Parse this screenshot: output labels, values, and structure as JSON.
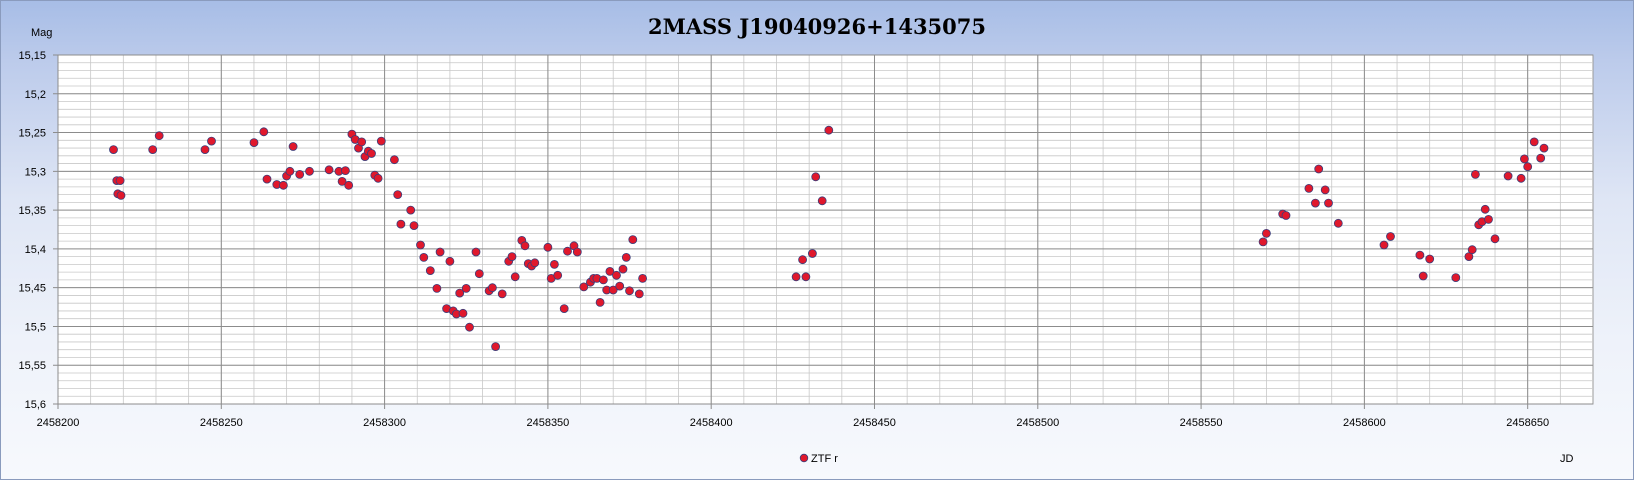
{
  "chart_data": {
    "type": "scatter",
    "title": "2MASS J19040926+1435075",
    "xlabel": "JD",
    "ylabel": "Mag",
    "xlim": [
      2458200,
      2458670
    ],
    "ylim": [
      15.15,
      15.6
    ],
    "y_inverted": true,
    "x_ticks": [
      "2458200",
      "2458250",
      "2458300",
      "2458350",
      "2458400",
      "2458450",
      "2458500",
      "2458550",
      "2458600",
      "2458650"
    ],
    "y_ticks": [
      "15,15",
      "15,2",
      "15,25",
      "15,3",
      "15,35",
      "15,4",
      "15,45",
      "15,5",
      "15,55",
      "15,6"
    ],
    "grid": true,
    "legend_position": "bottom-center",
    "colors": {
      "marker_fill": "#e0182c",
      "marker_edge": "#3a3d7a"
    },
    "series": [
      {
        "name": "ZTF r",
        "points": [
          [
            2458217,
            15.272
          ],
          [
            2458218,
            15.312
          ],
          [
            2458218.3,
            15.329
          ],
          [
            2458219,
            15.312
          ],
          [
            2458219.3,
            15.331
          ],
          [
            2458229,
            15.272
          ],
          [
            2458231,
            15.254
          ],
          [
            2458245,
            15.272
          ],
          [
            2458247,
            15.261
          ],
          [
            2458260,
            15.263
          ],
          [
            2458263,
            15.249
          ],
          [
            2458264,
            15.31
          ],
          [
            2458267,
            15.317
          ],
          [
            2458269,
            15.318
          ],
          [
            2458270,
            15.306
          ],
          [
            2458271,
            15.3
          ],
          [
            2458272,
            15.268
          ],
          [
            2458274,
            15.304
          ],
          [
            2458277,
            15.3
          ],
          [
            2458283,
            15.298
          ],
          [
            2458286,
            15.3
          ],
          [
            2458287,
            15.313
          ],
          [
            2458288,
            15.299
          ],
          [
            2458289,
            15.318
          ],
          [
            2458290,
            15.252
          ],
          [
            2458291,
            15.259
          ],
          [
            2458292,
            15.27
          ],
          [
            2458293,
            15.262
          ],
          [
            2458294,
            15.281
          ],
          [
            2458295,
            15.274
          ],
          [
            2458296,
            15.277
          ],
          [
            2458297,
            15.305
          ],
          [
            2458298,
            15.309
          ],
          [
            2458299,
            15.261
          ],
          [
            2458303,
            15.285
          ],
          [
            2458304,
            15.33
          ],
          [
            2458305,
            15.368
          ],
          [
            2458308,
            15.35
          ],
          [
            2458309,
            15.37
          ],
          [
            2458311,
            15.395
          ],
          [
            2458312,
            15.411
          ],
          [
            2458314,
            15.428
          ],
          [
            2458316,
            15.451
          ],
          [
            2458317,
            15.404
          ],
          [
            2458319,
            15.477
          ],
          [
            2458320,
            15.416
          ],
          [
            2458321,
            15.48
          ],
          [
            2458322,
            15.484
          ],
          [
            2458323,
            15.457
          ],
          [
            2458324,
            15.483
          ],
          [
            2458325,
            15.451
          ],
          [
            2458326,
            15.501
          ],
          [
            2458328,
            15.404
          ],
          [
            2458329,
            15.432
          ],
          [
            2458332,
            15.454
          ],
          [
            2458333,
            15.45
          ],
          [
            2458334,
            15.526
          ],
          [
            2458336,
            15.458
          ],
          [
            2458338,
            15.416
          ],
          [
            2458339,
            15.41
          ],
          [
            2458340,
            15.436
          ],
          [
            2458342,
            15.389
          ],
          [
            2458343,
            15.396
          ],
          [
            2458344,
            15.419
          ],
          [
            2458345,
            15.422
          ],
          [
            2458346,
            15.418
          ],
          [
            2458350,
            15.398
          ],
          [
            2458351,
            15.438
          ],
          [
            2458352,
            15.42
          ],
          [
            2458353,
            15.434
          ],
          [
            2458355,
            15.477
          ],
          [
            2458356,
            15.403
          ],
          [
            2458358,
            15.396
          ],
          [
            2458359,
            15.404
          ],
          [
            2458361,
            15.449
          ],
          [
            2458363,
            15.443
          ],
          [
            2458364,
            15.438
          ],
          [
            2458365,
            15.438
          ],
          [
            2458366,
            15.469
          ],
          [
            2458367,
            15.44
          ],
          [
            2458368,
            15.453
          ],
          [
            2458369,
            15.429
          ],
          [
            2458370,
            15.453
          ],
          [
            2458371,
            15.434
          ],
          [
            2458372,
            15.448
          ],
          [
            2458373,
            15.426
          ],
          [
            2458374,
            15.411
          ],
          [
            2458375,
            15.454
          ],
          [
            2458376,
            15.388
          ],
          [
            2458378,
            15.458
          ],
          [
            2458379,
            15.438
          ],
          [
            2458426,
            15.436
          ],
          [
            2458428,
            15.414
          ],
          [
            2458429,
            15.436
          ],
          [
            2458431,
            15.406
          ],
          [
            2458432,
            15.307
          ],
          [
            2458434,
            15.338
          ],
          [
            2458436,
            15.247
          ],
          [
            2458569,
            15.391
          ],
          [
            2458570,
            15.38
          ],
          [
            2458575,
            15.355
          ],
          [
            2458576,
            15.357
          ],
          [
            2458583,
            15.322
          ],
          [
            2458585,
            15.341
          ],
          [
            2458586,
            15.297
          ],
          [
            2458588,
            15.324
          ],
          [
            2458589,
            15.341
          ],
          [
            2458592,
            15.367
          ],
          [
            2458606,
            15.395
          ],
          [
            2458608,
            15.384
          ],
          [
            2458617,
            15.408
          ],
          [
            2458618,
            15.435
          ],
          [
            2458620,
            15.413
          ],
          [
            2458628,
            15.437
          ],
          [
            2458632,
            15.41
          ],
          [
            2458633,
            15.401
          ],
          [
            2458634,
            15.304
          ],
          [
            2458635,
            15.369
          ],
          [
            2458636,
            15.365
          ],
          [
            2458637,
            15.349
          ],
          [
            2458638,
            15.362
          ],
          [
            2458640,
            15.387
          ],
          [
            2458644,
            15.306
          ],
          [
            2458648,
            15.309
          ],
          [
            2458649,
            15.284
          ],
          [
            2458650,
            15.294
          ],
          [
            2458652,
            15.262
          ],
          [
            2458654,
            15.283
          ],
          [
            2458655,
            15.27
          ]
        ]
      }
    ]
  }
}
